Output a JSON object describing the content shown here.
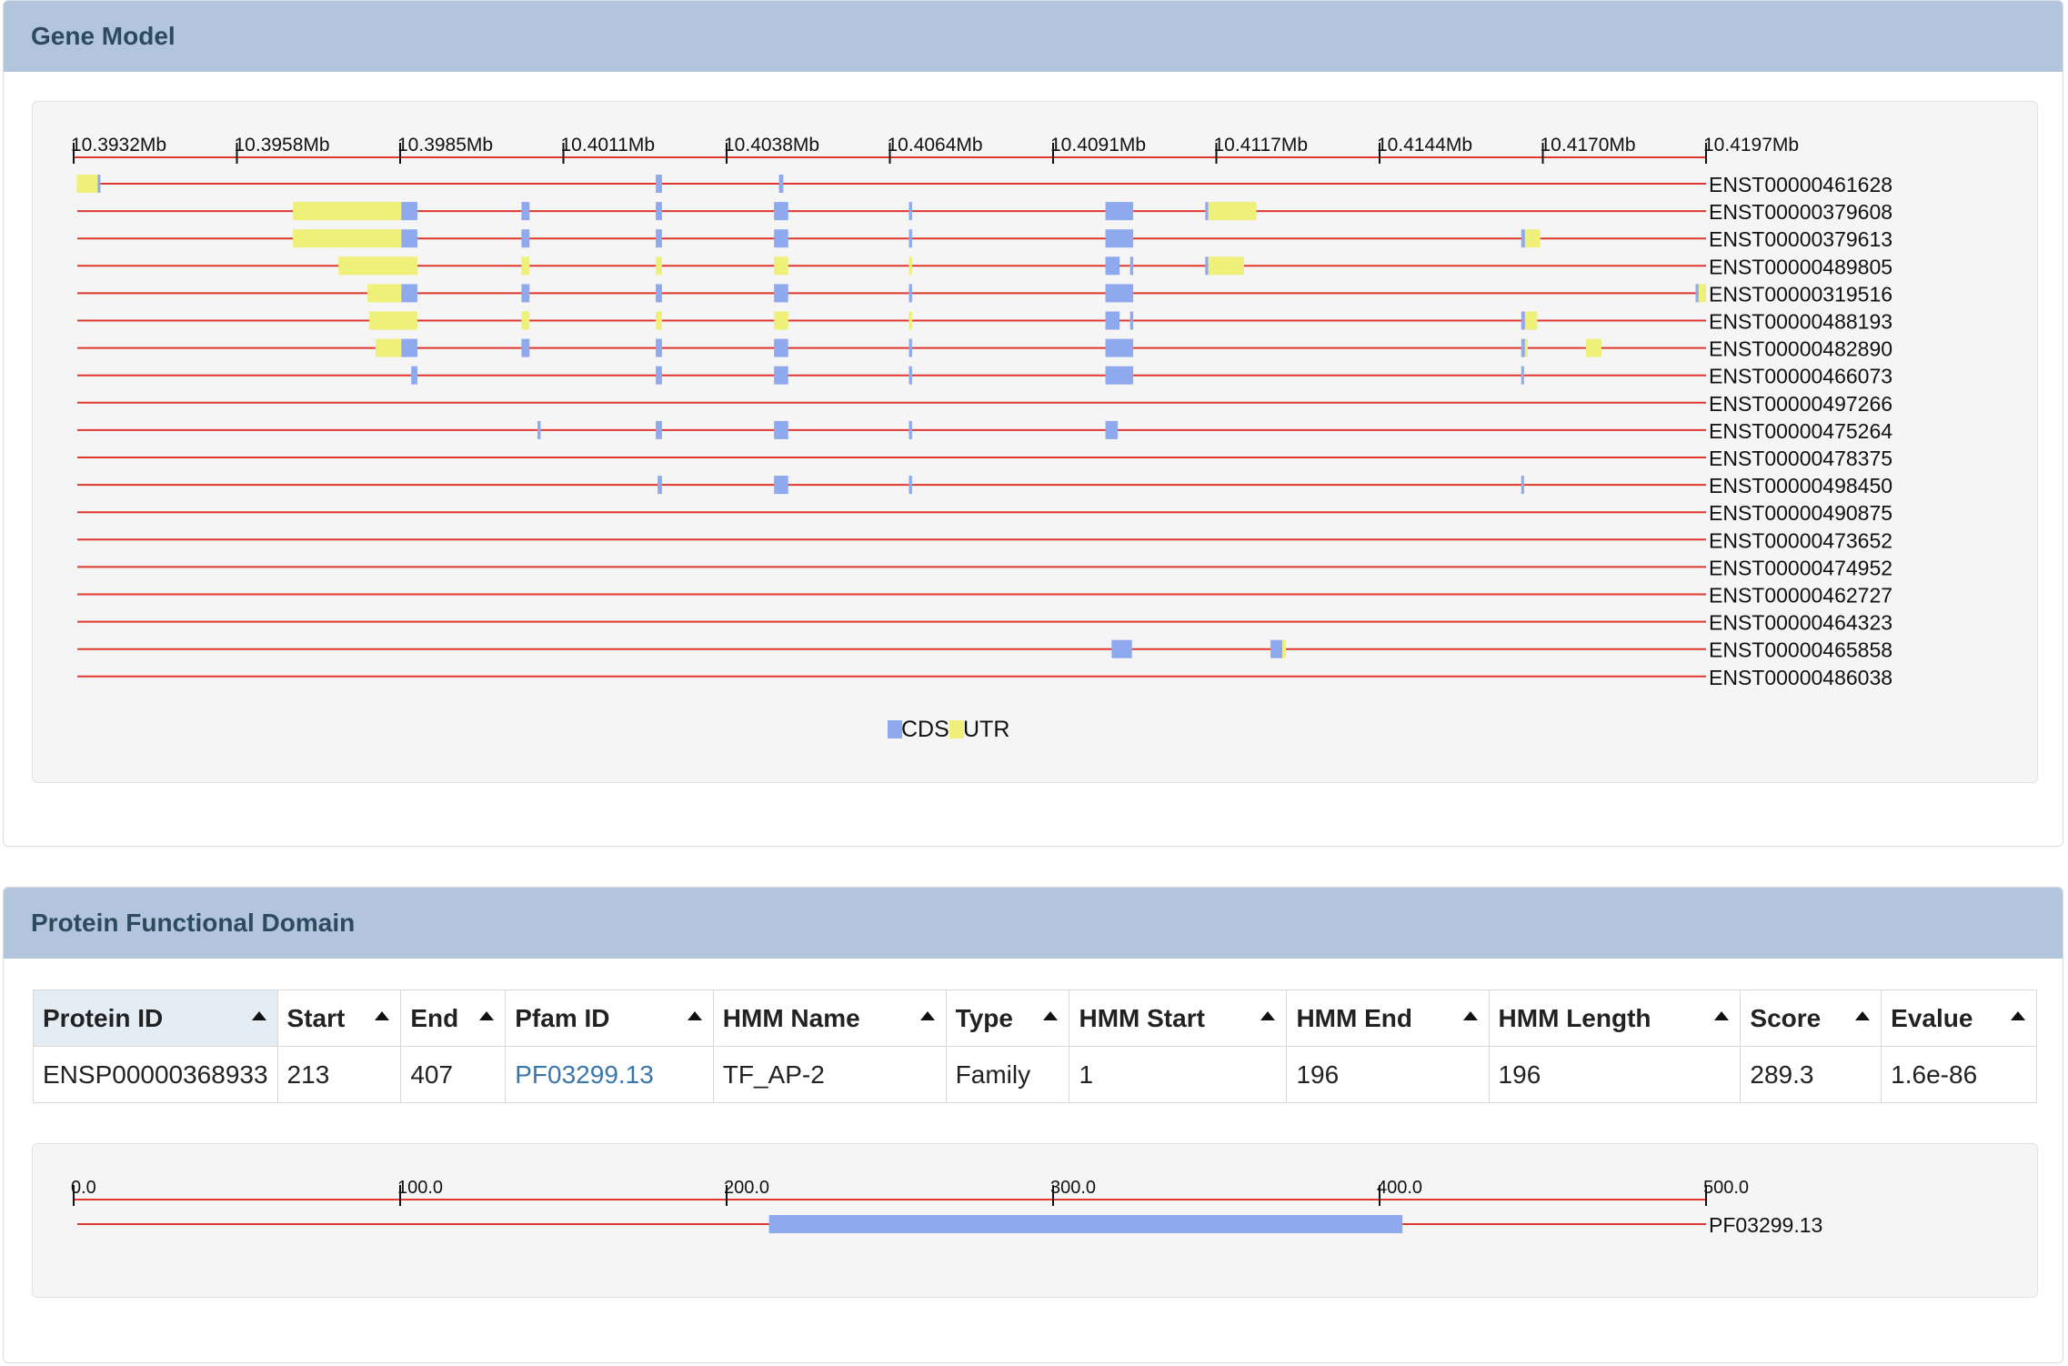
{
  "gene_model": {
    "title": "Gene Model",
    "axis": {
      "min": 10.3932,
      "max": 10.4197,
      "ticks": [
        "10.3932Mb",
        "10.3958Mb",
        "10.3985Mb",
        "10.4011Mb",
        "10.4038Mb",
        "10.4064Mb",
        "10.4091Mb",
        "10.4117Mb",
        "10.4144Mb",
        "10.4170Mb",
        "10.4197Mb"
      ]
    },
    "colors": {
      "cds": "#8ea9ee",
      "utr": "#eef07a",
      "line": "#e0382f"
    },
    "transcripts": [
      {
        "id": "ENST00000461628",
        "features": [
          [
            "U",
            10.39325,
            10.39359
          ],
          [
            "C",
            10.39359,
            10.39363
          ],
          [
            "C",
            10.40265,
            10.40275
          ],
          [
            "C",
            10.40465,
            10.40472
          ]
        ]
      },
      {
        "id": "ENST00000379608",
        "features": [
          [
            "U",
            10.39676,
            10.39852
          ],
          [
            "C",
            10.39852,
            10.39878
          ],
          [
            "C",
            10.40047,
            10.4006
          ],
          [
            "C",
            10.40265,
            10.40275
          ],
          [
            "C",
            10.40457,
            10.4048
          ],
          [
            "C",
            10.40676,
            10.40681
          ],
          [
            "C",
            10.40995,
            10.4104
          ],
          [
            "C",
            10.41157,
            10.41162
          ],
          [
            "U",
            10.41162,
            10.4124
          ]
        ]
      },
      {
        "id": "ENST00000379613",
        "features": [
          [
            "U",
            10.39676,
            10.39852
          ],
          [
            "C",
            10.39852,
            10.39878
          ],
          [
            "C",
            10.40047,
            10.4006
          ],
          [
            "C",
            10.40265,
            10.40275
          ],
          [
            "C",
            10.40457,
            10.4048
          ],
          [
            "C",
            10.40676,
            10.40681
          ],
          [
            "C",
            10.40995,
            10.4104
          ],
          [
            "C",
            10.4167,
            10.41676
          ],
          [
            "U",
            10.41676,
            10.41701
          ]
        ]
      },
      {
        "id": "ENST00000489805",
        "features": [
          [
            "U",
            10.3975,
            10.39878
          ],
          [
            "U",
            10.40047,
            10.4006
          ],
          [
            "U",
            10.40265,
            10.40275
          ],
          [
            "U",
            10.40457,
            10.4048
          ],
          [
            "U",
            10.40676,
            10.40681
          ],
          [
            "C",
            10.40995,
            10.41018
          ],
          [
            "C",
            10.41035,
            10.4104
          ],
          [
            "C",
            10.41157,
            10.41162
          ],
          [
            "U",
            10.41162,
            10.4122
          ]
        ]
      },
      {
        "id": "ENST00000319516",
        "features": [
          [
            "U",
            10.39797,
            10.39852
          ],
          [
            "C",
            10.39852,
            10.39878
          ],
          [
            "C",
            10.40047,
            10.4006
          ],
          [
            "C",
            10.40265,
            10.40275
          ],
          [
            "C",
            10.40457,
            10.4048
          ],
          [
            "C",
            10.40676,
            10.40681
          ],
          [
            "C",
            10.40995,
            10.4104
          ],
          [
            "C",
            10.41953,
            10.41958
          ],
          [
            "U",
            10.41958,
            10.4197
          ]
        ]
      },
      {
        "id": "ENST00000488193",
        "features": [
          [
            "U",
            10.398,
            10.39878
          ],
          [
            "U",
            10.40047,
            10.4006
          ],
          [
            "U",
            10.40265,
            10.40275
          ],
          [
            "U",
            10.40457,
            10.4048
          ],
          [
            "U",
            10.40676,
            10.40681
          ],
          [
            "C",
            10.40995,
            10.41018
          ],
          [
            "C",
            10.41035,
            10.4104
          ],
          [
            "C",
            10.4167,
            10.41676
          ],
          [
            "U",
            10.41676,
            10.41696
          ]
        ]
      },
      {
        "id": "ENST00000482890",
        "features": [
          [
            "U",
            10.3981,
            10.39852
          ],
          [
            "C",
            10.39852,
            10.39878
          ],
          [
            "C",
            10.40047,
            10.4006
          ],
          [
            "C",
            10.40265,
            10.40275
          ],
          [
            "C",
            10.40457,
            10.4048
          ],
          [
            "C",
            10.40676,
            10.40681
          ],
          [
            "C",
            10.40995,
            10.4104
          ],
          [
            "C",
            10.4167,
            10.41676
          ],
          [
            "U",
            10.41676,
            10.4168
          ],
          [
            "U",
            10.41775,
            10.418
          ]
        ]
      },
      {
        "id": "ENST00000466073",
        "features": [
          [
            "C",
            10.39868,
            10.39878
          ],
          [
            "C",
            10.40265,
            10.40275
          ],
          [
            "C",
            10.40457,
            10.4048
          ],
          [
            "C",
            10.40676,
            10.40681
          ],
          [
            "C",
            10.40995,
            10.4104
          ],
          [
            "C",
            10.4167,
            10.41674
          ]
        ]
      },
      {
        "id": "ENST00000497266",
        "features": []
      },
      {
        "id": "ENST00000475264",
        "features": [
          [
            "C",
            10.40073,
            10.40078
          ],
          [
            "C",
            10.40265,
            10.40275
          ],
          [
            "C",
            10.40457,
            10.4048
          ],
          [
            "C",
            10.40676,
            10.40681
          ],
          [
            "C",
            10.40995,
            10.41015
          ]
        ]
      },
      {
        "id": "ENST00000478375",
        "features": []
      },
      {
        "id": "ENST00000498450",
        "features": [
          [
            "C",
            10.40268,
            10.40275
          ],
          [
            "C",
            10.40457,
            10.4048
          ],
          [
            "C",
            10.40676,
            10.40681
          ],
          [
            "C",
            10.4167,
            10.41674
          ]
        ]
      },
      {
        "id": "ENST00000490875",
        "features": []
      },
      {
        "id": "ENST00000473652",
        "features": []
      },
      {
        "id": "ENST00000474952",
        "features": []
      },
      {
        "id": "ENST00000462727",
        "features": []
      },
      {
        "id": "ENST00000464323",
        "features": []
      },
      {
        "id": "ENST00000465858",
        "features": [
          [
            "C",
            10.41005,
            10.41038
          ],
          [
            "C",
            10.41263,
            10.41282
          ],
          [
            "U",
            10.41282,
            10.41288
          ]
        ]
      },
      {
        "id": "ENST00000486038",
        "features": []
      }
    ],
    "legend": [
      {
        "label": "CDS",
        "color": "#8ea9ee"
      },
      {
        "label": "UTR",
        "color": "#eef07a"
      }
    ]
  },
  "protein_domain": {
    "title": "Protein Functional Domain",
    "columns": [
      "Protein ID",
      "Start",
      "End",
      "Pfam ID",
      "HMM Name",
      "Type",
      "HMM Start",
      "HMM End",
      "HMM Length",
      "Score",
      "Evalue"
    ],
    "rows": [
      [
        "ENSP00000368933",
        "213",
        "407",
        "PF03299.13",
        "TF_AP-2",
        "Family",
        "1",
        "196",
        "196",
        "289.3",
        "1.6e-86"
      ]
    ],
    "axis": {
      "min": 0,
      "max": 500,
      "ticks": [
        "0.0",
        "100.0",
        "200.0",
        "300.0",
        "400.0",
        "500.0"
      ]
    },
    "track": {
      "label": "PF03299.13",
      "start": 213,
      "end": 407,
      "color": "#8ea9ee"
    }
  }
}
